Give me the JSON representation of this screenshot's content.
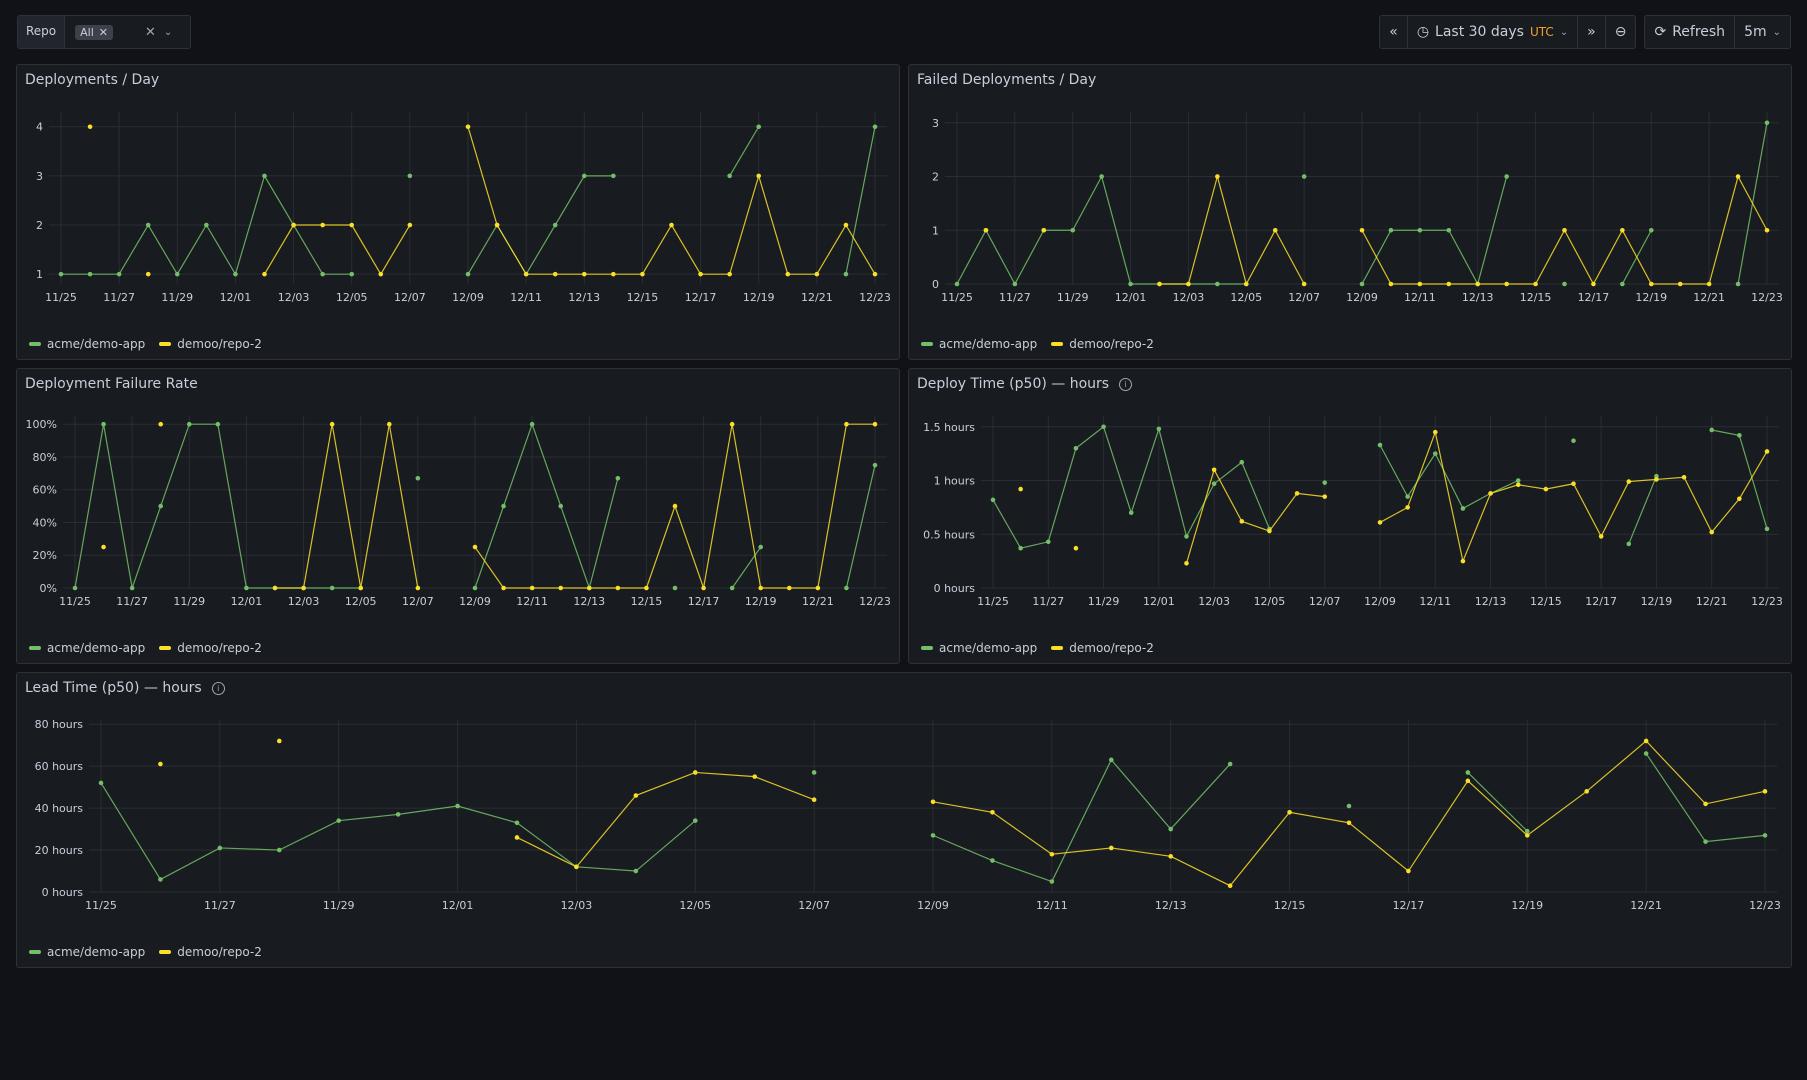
{
  "toolbar": {
    "var_label": "Repo",
    "var_chip": "All",
    "time_range": "Last 30 days",
    "timezone": "UTC",
    "refresh_label": "Refresh",
    "refresh_interval": "5m"
  },
  "colors": {
    "green": "#73bf69",
    "yellow": "#fade2a"
  },
  "legend": [
    "acme/demo-app",
    "demoo/repo-2"
  ],
  "panels": [
    {
      "title": "Deployments / Day",
      "info": false
    },
    {
      "title": "Failed Deployments / Day",
      "info": false
    },
    {
      "title": "Deployment Failure Rate",
      "info": false
    },
    {
      "title": "Deploy Time (p50) — hours",
      "info": true
    },
    {
      "title": "Lead Time (p50) — hours",
      "info": true
    }
  ],
  "chart_data": [
    {
      "type": "line",
      "title": "Deployments / Day",
      "x": [
        "11/25",
        "11/26",
        "11/27",
        "11/28",
        "11/29",
        "11/30",
        "12/01",
        "12/02",
        "12/03",
        "12/04",
        "12/05",
        "12/06",
        "12/07",
        "12/08",
        "12/09",
        "12/10",
        "12/11",
        "12/12",
        "12/13",
        "12/14",
        "12/15",
        "12/16",
        "12/17",
        "12/18",
        "12/19",
        "12/20",
        "12/21",
        "12/22",
        "12/23"
      ],
      "x_tick_labels": [
        "11/25",
        "11/27",
        "11/29",
        "12/01",
        "12/03",
        "12/05",
        "12/07",
        "12/09",
        "12/11",
        "12/13",
        "12/15",
        "12/17",
        "12/19",
        "12/21",
        "12/23"
      ],
      "y_tick_labels": [
        "1",
        "2",
        "3",
        "4"
      ],
      "ylim": [
        0.8,
        4.3
      ],
      "series": [
        {
          "name": "acme/demo-app",
          "color": "#73bf69",
          "values": [
            1,
            1,
            1,
            2,
            1,
            2,
            1,
            3,
            2,
            1,
            1,
            null,
            3,
            null,
            1,
            2,
            1,
            2,
            3,
            3,
            null,
            null,
            null,
            3,
            4,
            null,
            null,
            1,
            4
          ]
        },
        {
          "name": "demoo/repo-2",
          "color": "#fade2a",
          "values": [
            null,
            4,
            null,
            1,
            null,
            null,
            null,
            1,
            2,
            2,
            2,
            1,
            2,
            null,
            4,
            2,
            1,
            1,
            1,
            1,
            1,
            2,
            1,
            1,
            3,
            1,
            1,
            2,
            1
          ]
        }
      ]
    },
    {
      "type": "line",
      "title": "Failed Deployments / Day",
      "x": [
        "11/25",
        "11/26",
        "11/27",
        "11/28",
        "11/29",
        "11/30",
        "12/01",
        "12/02",
        "12/03",
        "12/04",
        "12/05",
        "12/06",
        "12/07",
        "12/08",
        "12/09",
        "12/10",
        "12/11",
        "12/12",
        "12/13",
        "12/14",
        "12/15",
        "12/16",
        "12/17",
        "12/18",
        "12/19",
        "12/20",
        "12/21",
        "12/22",
        "12/23"
      ],
      "x_tick_labels": [
        "11/25",
        "11/27",
        "11/29",
        "12/01",
        "12/03",
        "12/05",
        "12/07",
        "12/09",
        "12/11",
        "12/13",
        "12/15",
        "12/17",
        "12/19",
        "12/21",
        "12/23"
      ],
      "y_tick_labels": [
        "0",
        "1",
        "2",
        "3"
      ],
      "ylim": [
        0,
        3.2
      ],
      "series": [
        {
          "name": "acme/demo-app",
          "color": "#73bf69",
          "values": [
            0,
            1,
            0,
            1,
            1,
            2,
            0,
            0,
            0,
            0,
            0,
            null,
            2,
            null,
            0,
            1,
            1,
            1,
            0,
            2,
            null,
            0,
            null,
            0,
            1,
            null,
            null,
            0,
            3
          ]
        },
        {
          "name": "demoo/repo-2",
          "color": "#fade2a",
          "values": [
            null,
            1,
            null,
            1,
            null,
            null,
            null,
            0,
            0,
            2,
            0,
            1,
            0,
            null,
            1,
            0,
            0,
            0,
            0,
            0,
            0,
            1,
            0,
            1,
            0,
            0,
            0,
            2,
            1
          ]
        }
      ]
    },
    {
      "type": "line",
      "title": "Deployment Failure Rate",
      "x": [
        "11/25",
        "11/26",
        "11/27",
        "11/28",
        "11/29",
        "11/30",
        "12/01",
        "12/02",
        "12/03",
        "12/04",
        "12/05",
        "12/06",
        "12/07",
        "12/08",
        "12/09",
        "12/10",
        "12/11",
        "12/12",
        "12/13",
        "12/14",
        "12/15",
        "12/16",
        "12/17",
        "12/18",
        "12/19",
        "12/20",
        "12/21",
        "12/22",
        "12/23"
      ],
      "x_tick_labels": [
        "11/25",
        "11/27",
        "11/29",
        "12/01",
        "12/03",
        "12/05",
        "12/07",
        "12/09",
        "12/11",
        "12/13",
        "12/15",
        "12/17",
        "12/19",
        "12/21",
        "12/23"
      ],
      "y_tick_labels": [
        "0%",
        "20%",
        "40%",
        "60%",
        "80%",
        "100%"
      ],
      "ylim": [
        0,
        105
      ],
      "series": [
        {
          "name": "acme/demo-app",
          "color": "#73bf69",
          "values": [
            0,
            100,
            0,
            50,
            100,
            100,
            0,
            0,
            0,
            0,
            0,
            null,
            67,
            null,
            0,
            50,
            100,
            50,
            0,
            67,
            null,
            0,
            null,
            0,
            25,
            null,
            null,
            0,
            75
          ]
        },
        {
          "name": "demoo/repo-2",
          "color": "#fade2a",
          "values": [
            null,
            25,
            null,
            100,
            null,
            null,
            null,
            0,
            0,
            100,
            0,
            100,
            0,
            null,
            25,
            0,
            0,
            0,
            0,
            0,
            0,
            50,
            0,
            100,
            0,
            0,
            0,
            100,
            100
          ]
        }
      ]
    },
    {
      "type": "line",
      "title": "Deploy Time (p50) — hours",
      "x": [
        "11/25",
        "11/26",
        "11/27",
        "11/28",
        "11/29",
        "11/30",
        "12/01",
        "12/02",
        "12/03",
        "12/04",
        "12/05",
        "12/06",
        "12/07",
        "12/08",
        "12/09",
        "12/10",
        "12/11",
        "12/12",
        "12/13",
        "12/14",
        "12/15",
        "12/16",
        "12/17",
        "12/18",
        "12/19",
        "12/20",
        "12/21",
        "12/22",
        "12/23"
      ],
      "x_tick_labels": [
        "11/25",
        "11/27",
        "11/29",
        "12/01",
        "12/03",
        "12/05",
        "12/07",
        "12/09",
        "12/11",
        "12/13",
        "12/15",
        "12/17",
        "12/19",
        "12/21",
        "12/23"
      ],
      "y_tick_labels": [
        "0 hours",
        "0.5 hours",
        "1 hours",
        "1.5 hours"
      ],
      "ylim": [
        0,
        1.6
      ],
      "series": [
        {
          "name": "acme/demo-app",
          "color": "#73bf69",
          "values": [
            0.82,
            0.37,
            0.43,
            1.3,
            1.5,
            0.7,
            1.48,
            0.48,
            0.97,
            1.17,
            0.55,
            null,
            0.98,
            null,
            1.33,
            0.85,
            1.25,
            0.74,
            0.88,
            1.0,
            null,
            1.37,
            null,
            0.41,
            1.04,
            null,
            1.47,
            1.42,
            0.55
          ]
        },
        {
          "name": "demoo/repo-2",
          "color": "#fade2a",
          "values": [
            null,
            0.92,
            null,
            0.37,
            null,
            null,
            null,
            0.23,
            1.1,
            0.62,
            0.53,
            0.88,
            0.85,
            null,
            0.61,
            0.75,
            1.45,
            0.25,
            0.88,
            0.96,
            0.92,
            0.97,
            0.48,
            0.99,
            1.01,
            1.03,
            0.52,
            0.83,
            1.27
          ]
        }
      ]
    },
    {
      "type": "line",
      "title": "Lead Time (p50) — hours",
      "x": [
        "11/25",
        "11/26",
        "11/27",
        "11/28",
        "11/29",
        "11/30",
        "12/01",
        "12/02",
        "12/03",
        "12/04",
        "12/05",
        "12/06",
        "12/07",
        "12/08",
        "12/09",
        "12/10",
        "12/11",
        "12/12",
        "12/13",
        "12/14",
        "12/15",
        "12/16",
        "12/17",
        "12/18",
        "12/19",
        "12/20",
        "12/21",
        "12/22",
        "12/23"
      ],
      "x_tick_labels": [
        "11/25",
        "11/27",
        "11/29",
        "12/01",
        "12/03",
        "12/05",
        "12/07",
        "12/09",
        "12/11",
        "12/13",
        "12/15",
        "12/17",
        "12/19",
        "12/21",
        "12/23"
      ],
      "y_tick_labels": [
        "0 hours",
        "20 hours",
        "40 hours",
        "60 hours",
        "80 hours"
      ],
      "ylim": [
        0,
        82
      ],
      "series": [
        {
          "name": "acme/demo-app",
          "color": "#73bf69",
          "values": [
            52,
            6,
            21,
            20,
            34,
            37,
            41,
            33,
            12,
            10,
            34,
            null,
            57,
            null,
            27,
            15,
            5,
            63,
            30,
            61,
            null,
            41,
            null,
            57,
            29,
            null,
            66,
            24,
            27
          ]
        },
        {
          "name": "demoo/repo-2",
          "color": "#fade2a",
          "values": [
            null,
            61,
            null,
            72,
            null,
            null,
            null,
            26,
            12,
            46,
            57,
            55,
            44,
            null,
            43,
            38,
            18,
            21,
            17,
            3,
            38,
            33,
            10,
            53,
            27,
            48,
            72,
            42,
            48
          ]
        }
      ]
    }
  ]
}
